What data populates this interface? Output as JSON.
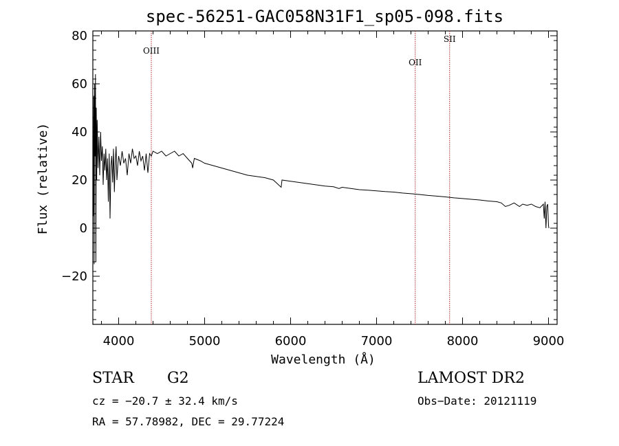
{
  "chart_data": {
    "type": "line",
    "title": "spec-56251-GAC058N31F1_sp05-098.fits",
    "xlabel": "Wavelength (Å)",
    "ylabel": "Flux (relative)",
    "xlim": [
      3700,
      9100
    ],
    "ylim": [
      -40,
      82
    ],
    "xticks": [
      4000,
      5000,
      6000,
      7000,
      8000,
      9000
    ],
    "yticks": [
      -20,
      0,
      20,
      40,
      60,
      80
    ],
    "grid": false,
    "series": [
      {
        "values_xy": [
          [
            3700,
            20
          ],
          [
            3705,
            5
          ],
          [
            3710,
            55
          ],
          [
            3715,
            -15
          ],
          [
            3720,
            60
          ],
          [
            3725,
            30
          ],
          [
            3730,
            64
          ],
          [
            3735,
            -14
          ],
          [
            3740,
            50
          ],
          [
            3745,
            20
          ],
          [
            3750,
            45
          ],
          [
            3760,
            25
          ],
          [
            3770,
            38
          ],
          [
            3780,
            22
          ],
          [
            3790,
            40
          ],
          [
            3800,
            28
          ],
          [
            3810,
            34
          ],
          [
            3820,
            18
          ],
          [
            3830,
            31
          ],
          [
            3840,
            24
          ],
          [
            3850,
            33
          ],
          [
            3860,
            20
          ],
          [
            3870,
            29
          ],
          [
            3880,
            11
          ],
          [
            3890,
            31
          ],
          [
            3900,
            4
          ],
          [
            3910,
            26
          ],
          [
            3920,
            30
          ],
          [
            3930,
            19
          ],
          [
            3940,
            33
          ],
          [
            3950,
            15
          ],
          [
            3960,
            27
          ],
          [
            3970,
            34
          ],
          [
            3980,
            20
          ],
          [
            3990,
            26
          ],
          [
            4000,
            30
          ],
          [
            4020,
            26
          ],
          [
            4040,
            32
          ],
          [
            4060,
            27
          ],
          [
            4080,
            29
          ],
          [
            4100,
            22
          ],
          [
            4120,
            31
          ],
          [
            4140,
            27
          ],
          [
            4160,
            33
          ],
          [
            4180,
            29
          ],
          [
            4200,
            30
          ],
          [
            4220,
            26
          ],
          [
            4240,
            32
          ],
          [
            4260,
            28
          ],
          [
            4280,
            30
          ],
          [
            4300,
            24
          ],
          [
            4320,
            31
          ],
          [
            4340,
            23
          ],
          [
            4360,
            31
          ],
          [
            4380,
            30
          ],
          [
            4400,
            32
          ],
          [
            4450,
            31
          ],
          [
            4500,
            32
          ],
          [
            4550,
            30
          ],
          [
            4600,
            31
          ],
          [
            4650,
            32
          ],
          [
            4700,
            30
          ],
          [
            4750,
            31
          ],
          [
            4800,
            29
          ],
          [
            4850,
            27
          ],
          [
            4861,
            25
          ],
          [
            4880,
            29
          ],
          [
            4950,
            28
          ],
          [
            5000,
            27
          ],
          [
            5100,
            26
          ],
          [
            5200,
            25
          ],
          [
            5300,
            24
          ],
          [
            5400,
            23
          ],
          [
            5500,
            22
          ],
          [
            5600,
            21.5
          ],
          [
            5700,
            21
          ],
          [
            5800,
            20
          ],
          [
            5890,
            17
          ],
          [
            5900,
            20
          ],
          [
            6000,
            19.5
          ],
          [
            6100,
            19
          ],
          [
            6200,
            18.5
          ],
          [
            6300,
            18
          ],
          [
            6400,
            17.5
          ],
          [
            6500,
            17.2
          ],
          [
            6563,
            16.5
          ],
          [
            6600,
            17
          ],
          [
            6700,
            16.5
          ],
          [
            6800,
            16
          ],
          [
            6900,
            15.8
          ],
          [
            7000,
            15.5
          ],
          [
            7100,
            15.2
          ],
          [
            7200,
            15
          ],
          [
            7300,
            14.6
          ],
          [
            7400,
            14.3
          ],
          [
            7500,
            14
          ],
          [
            7600,
            13.6
          ],
          [
            7700,
            13.3
          ],
          [
            7800,
            13
          ],
          [
            7900,
            12.6
          ],
          [
            8000,
            12.3
          ],
          [
            8100,
            12
          ],
          [
            8200,
            11.7
          ],
          [
            8300,
            11.3
          ],
          [
            8400,
            11
          ],
          [
            8450,
            10.5
          ],
          [
            8498,
            9
          ],
          [
            8542,
            9.5
          ],
          [
            8600,
            10.5
          ],
          [
            8662,
            9
          ],
          [
            8700,
            10
          ],
          [
            8750,
            9.5
          ],
          [
            8800,
            10
          ],
          [
            8850,
            9
          ],
          [
            8900,
            8.5
          ],
          [
            8940,
            10
          ],
          [
            8950,
            4
          ],
          [
            8960,
            11
          ],
          [
            8970,
            0
          ],
          [
            8980,
            9
          ],
          [
            8990,
            10
          ],
          [
            9000,
            1
          ],
          [
            9005,
            0
          ]
        ]
      }
    ],
    "annotations": [
      {
        "label": "OIII",
        "x": 4380
      },
      {
        "label": "OII",
        "x": 7450
      },
      {
        "label": "SII",
        "x": 7850
      }
    ]
  },
  "info": {
    "class_label": "STAR",
    "subclass_label": "G2",
    "survey": "LAMOST DR2",
    "cz": "cz = −20.7 ± 32.4 km/s",
    "obs_date": "Obs−Date: 20121119",
    "coords": "RA =  57.78982, DEC =  29.77224"
  },
  "colors": {
    "line": "#000000",
    "marker_line": "#b22222",
    "axes": "#000000"
  }
}
